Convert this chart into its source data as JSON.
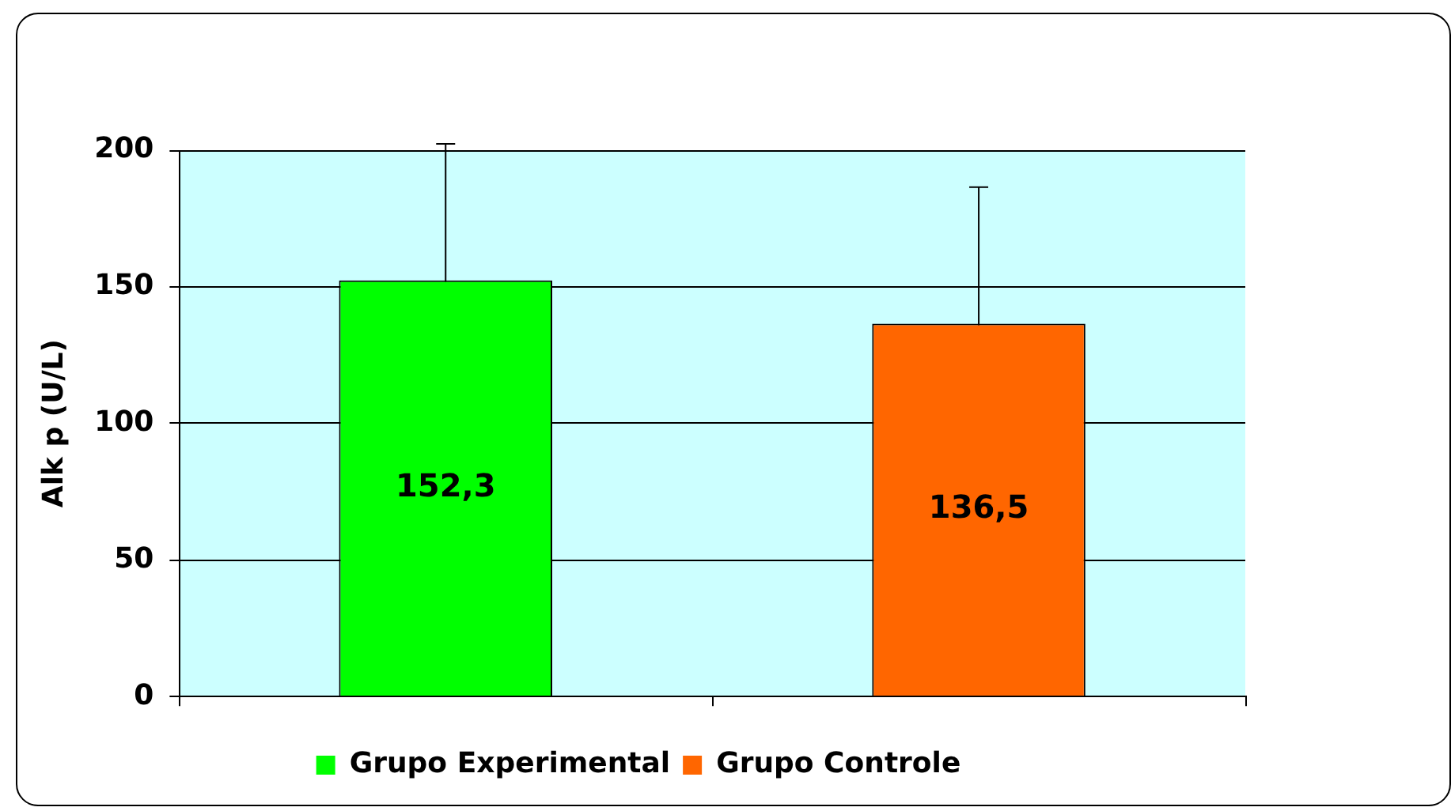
{
  "chart_data": {
    "type": "bar",
    "ylabel": "Alk p (U/L)",
    "categories": [
      null,
      null
    ],
    "series": [
      {
        "name": "Grupo Experimental",
        "color": "#00ff00",
        "values": [
          152.3,
          null
        ],
        "errors": [
          50,
          null
        ],
        "value_labels": [
          "152,3",
          null
        ]
      },
      {
        "name": "Grupo Controle",
        "color": "#ff6600",
        "values": [
          null,
          136.5
        ],
        "errors": [
          null,
          50
        ],
        "value_labels": [
          null,
          "136,5"
        ]
      }
    ],
    "ylim": [
      0,
      200
    ],
    "yticks": [
      0,
      50,
      100,
      150,
      200
    ],
    "grid": "y",
    "legend": "bottom"
  }
}
